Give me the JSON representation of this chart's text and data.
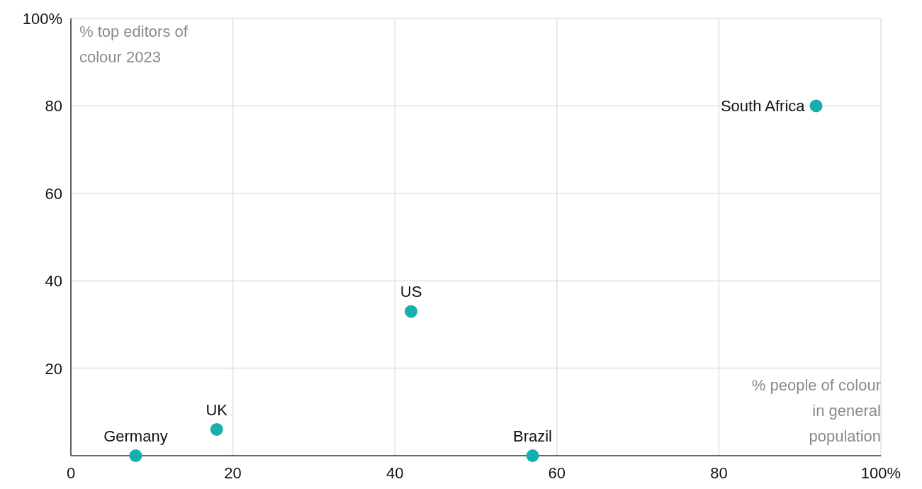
{
  "chart_data": {
    "type": "scatter",
    "xlabel": "% people of colour in general population",
    "ylabel": "% top editors of colour 2023",
    "x": [
      8,
      18,
      42,
      57,
      92
    ],
    "series": [
      {
        "color": "#17aeae",
        "values": [
          0,
          6,
          33,
          0,
          80
        ]
      }
    ],
    "xlim": [
      0,
      100
    ],
    "ylim": [
      0,
      100
    ],
    "xticks": [
      0,
      20,
      40,
      60,
      80,
      {
        "value": 100,
        "label": "100%"
      }
    ],
    "yticks": [
      20,
      40,
      60,
      80,
      {
        "value": 100,
        "label": "100%"
      }
    ],
    "grid": true,
    "marker": "circle",
    "annotations": [
      {
        "text": "Germany",
        "x": 8,
        "y": 0
      },
      {
        "text": "UK",
        "x": 18,
        "y": 6
      },
      {
        "text": "US",
        "x": 42,
        "y": 33
      },
      {
        "text": "Brazil",
        "x": 57,
        "y": 0
      },
      {
        "text": "South Africa",
        "x": 92,
        "y": 80
      }
    ]
  }
}
